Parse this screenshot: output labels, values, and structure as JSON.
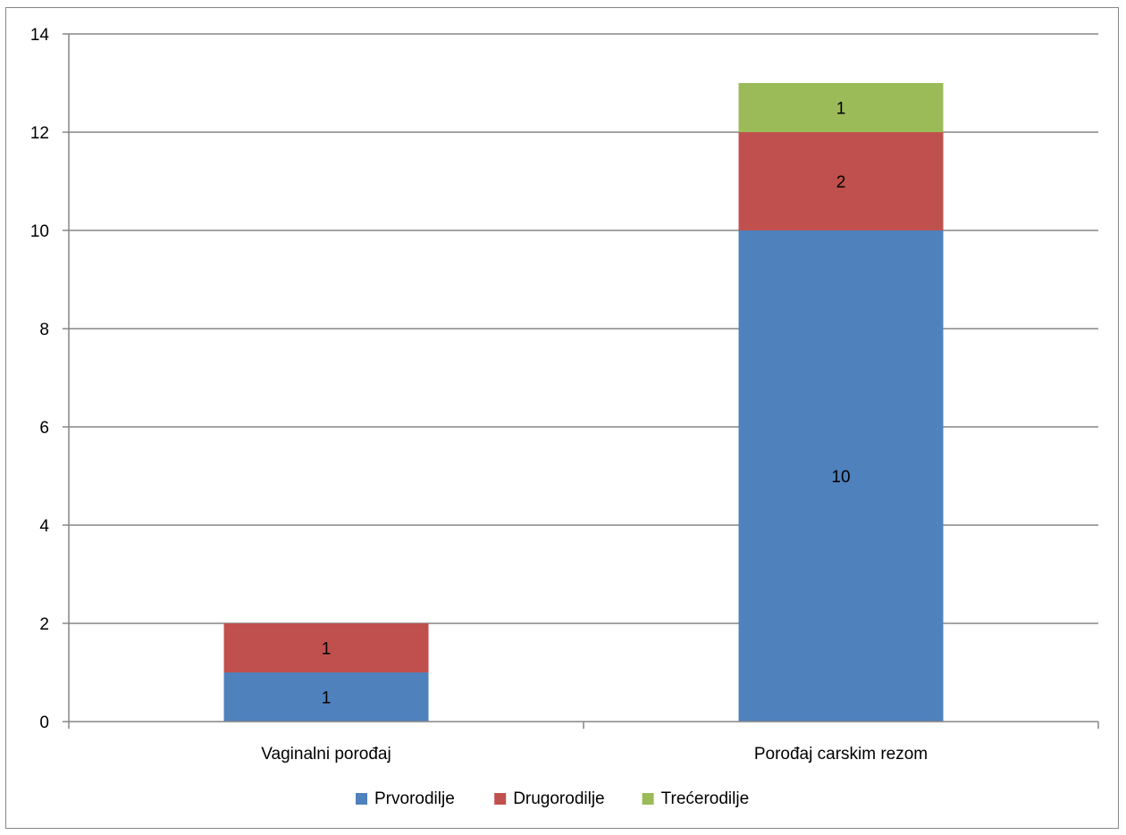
{
  "chart_data": {
    "type": "bar",
    "stacked": true,
    "categories": [
      "Vaginalni porođaj",
      "Porođaj carskim rezom"
    ],
    "series": [
      {
        "name": "Prvorodilje",
        "values": [
          1,
          10
        ],
        "color": "#4f81bd"
      },
      {
        "name": "Drugorodilje",
        "values": [
          1,
          2
        ],
        "color": "#c0504d"
      },
      {
        "name": "Trećerodilje",
        "values": [
          0,
          1
        ],
        "color": "#9bbb59"
      }
    ],
    "ylim": [
      0,
      14
    ],
    "yticks": [
      0,
      2,
      4,
      6,
      8,
      10,
      12,
      14
    ],
    "grid": true,
    "legend": "bottom",
    "gridline_color": "#868686"
  }
}
